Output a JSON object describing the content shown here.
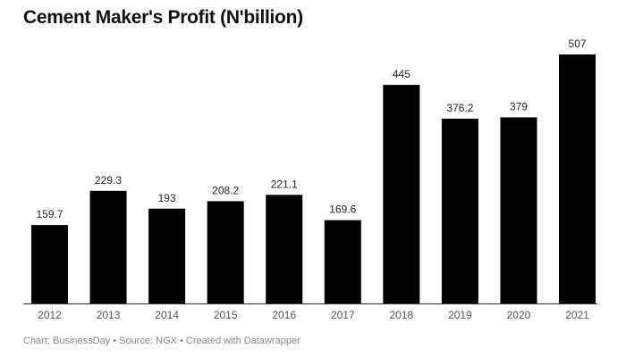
{
  "chart_data": {
    "type": "bar",
    "title": "Cement Maker's Profit (N'billion)",
    "categories": [
      "2012",
      "2013",
      "2014",
      "2015",
      "2016",
      "2017",
      "2018",
      "2019",
      "2020",
      "2021"
    ],
    "values": [
      159.7,
      229.3,
      193,
      208.2,
      221.1,
      169.6,
      445,
      376.2,
      379,
      507
    ],
    "value_labels": [
      "159.7",
      "229.3",
      "193",
      "208.2",
      "221.1",
      "169.6",
      "445",
      "376.2",
      "379",
      "507"
    ],
    "xlabel": "",
    "ylabel": "",
    "ylim": [
      0,
      507
    ],
    "grid": false,
    "bar_color": "#000000"
  },
  "footer": "Chart: BusinessDay • Source: NGX • Created with Datawrapper"
}
